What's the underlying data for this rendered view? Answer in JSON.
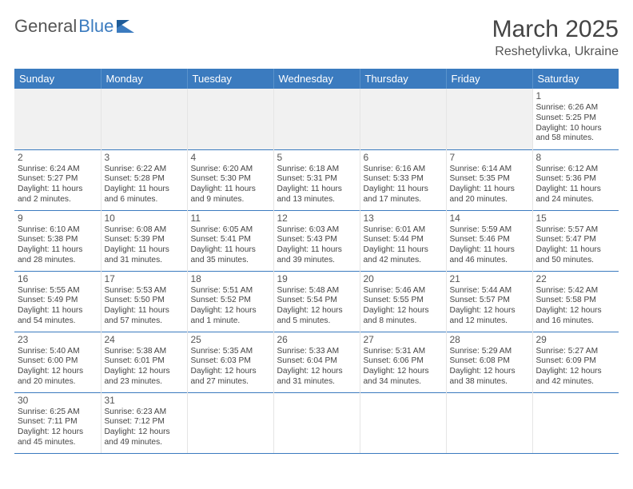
{
  "brand": {
    "name1": "General",
    "name2": "Blue"
  },
  "title": "March 2025",
  "location": "Reshetylivka, Ukraine",
  "colors": {
    "header_bg": "#3b7bbf",
    "header_text": "#ffffff",
    "cell_border": "#3b7bbf",
    "text": "#444444",
    "empty_bg": "#f1f1f1"
  },
  "dow": [
    "Sunday",
    "Monday",
    "Tuesday",
    "Wednesday",
    "Thursday",
    "Friday",
    "Saturday"
  ],
  "weeks": [
    [
      null,
      null,
      null,
      null,
      null,
      null,
      {
        "n": "1",
        "sr": "Sunrise: 6:26 AM",
        "ss": "Sunset: 5:25 PM",
        "d1": "Daylight: 10 hours",
        "d2": "and 58 minutes."
      }
    ],
    [
      {
        "n": "2",
        "sr": "Sunrise: 6:24 AM",
        "ss": "Sunset: 5:27 PM",
        "d1": "Daylight: 11 hours",
        "d2": "and 2 minutes."
      },
      {
        "n": "3",
        "sr": "Sunrise: 6:22 AM",
        "ss": "Sunset: 5:28 PM",
        "d1": "Daylight: 11 hours",
        "d2": "and 6 minutes."
      },
      {
        "n": "4",
        "sr": "Sunrise: 6:20 AM",
        "ss": "Sunset: 5:30 PM",
        "d1": "Daylight: 11 hours",
        "d2": "and 9 minutes."
      },
      {
        "n": "5",
        "sr": "Sunrise: 6:18 AM",
        "ss": "Sunset: 5:31 PM",
        "d1": "Daylight: 11 hours",
        "d2": "and 13 minutes."
      },
      {
        "n": "6",
        "sr": "Sunrise: 6:16 AM",
        "ss": "Sunset: 5:33 PM",
        "d1": "Daylight: 11 hours",
        "d2": "and 17 minutes."
      },
      {
        "n": "7",
        "sr": "Sunrise: 6:14 AM",
        "ss": "Sunset: 5:35 PM",
        "d1": "Daylight: 11 hours",
        "d2": "and 20 minutes."
      },
      {
        "n": "8",
        "sr": "Sunrise: 6:12 AM",
        "ss": "Sunset: 5:36 PM",
        "d1": "Daylight: 11 hours",
        "d2": "and 24 minutes."
      }
    ],
    [
      {
        "n": "9",
        "sr": "Sunrise: 6:10 AM",
        "ss": "Sunset: 5:38 PM",
        "d1": "Daylight: 11 hours",
        "d2": "and 28 minutes."
      },
      {
        "n": "10",
        "sr": "Sunrise: 6:08 AM",
        "ss": "Sunset: 5:39 PM",
        "d1": "Daylight: 11 hours",
        "d2": "and 31 minutes."
      },
      {
        "n": "11",
        "sr": "Sunrise: 6:05 AM",
        "ss": "Sunset: 5:41 PM",
        "d1": "Daylight: 11 hours",
        "d2": "and 35 minutes."
      },
      {
        "n": "12",
        "sr": "Sunrise: 6:03 AM",
        "ss": "Sunset: 5:43 PM",
        "d1": "Daylight: 11 hours",
        "d2": "and 39 minutes."
      },
      {
        "n": "13",
        "sr": "Sunrise: 6:01 AM",
        "ss": "Sunset: 5:44 PM",
        "d1": "Daylight: 11 hours",
        "d2": "and 42 minutes."
      },
      {
        "n": "14",
        "sr": "Sunrise: 5:59 AM",
        "ss": "Sunset: 5:46 PM",
        "d1": "Daylight: 11 hours",
        "d2": "and 46 minutes."
      },
      {
        "n": "15",
        "sr": "Sunrise: 5:57 AM",
        "ss": "Sunset: 5:47 PM",
        "d1": "Daylight: 11 hours",
        "d2": "and 50 minutes."
      }
    ],
    [
      {
        "n": "16",
        "sr": "Sunrise: 5:55 AM",
        "ss": "Sunset: 5:49 PM",
        "d1": "Daylight: 11 hours",
        "d2": "and 54 minutes."
      },
      {
        "n": "17",
        "sr": "Sunrise: 5:53 AM",
        "ss": "Sunset: 5:50 PM",
        "d1": "Daylight: 11 hours",
        "d2": "and 57 minutes."
      },
      {
        "n": "18",
        "sr": "Sunrise: 5:51 AM",
        "ss": "Sunset: 5:52 PM",
        "d1": "Daylight: 12 hours",
        "d2": "and 1 minute."
      },
      {
        "n": "19",
        "sr": "Sunrise: 5:48 AM",
        "ss": "Sunset: 5:54 PM",
        "d1": "Daylight: 12 hours",
        "d2": "and 5 minutes."
      },
      {
        "n": "20",
        "sr": "Sunrise: 5:46 AM",
        "ss": "Sunset: 5:55 PM",
        "d1": "Daylight: 12 hours",
        "d2": "and 8 minutes."
      },
      {
        "n": "21",
        "sr": "Sunrise: 5:44 AM",
        "ss": "Sunset: 5:57 PM",
        "d1": "Daylight: 12 hours",
        "d2": "and 12 minutes."
      },
      {
        "n": "22",
        "sr": "Sunrise: 5:42 AM",
        "ss": "Sunset: 5:58 PM",
        "d1": "Daylight: 12 hours",
        "d2": "and 16 minutes."
      }
    ],
    [
      {
        "n": "23",
        "sr": "Sunrise: 5:40 AM",
        "ss": "Sunset: 6:00 PM",
        "d1": "Daylight: 12 hours",
        "d2": "and 20 minutes."
      },
      {
        "n": "24",
        "sr": "Sunrise: 5:38 AM",
        "ss": "Sunset: 6:01 PM",
        "d1": "Daylight: 12 hours",
        "d2": "and 23 minutes."
      },
      {
        "n": "25",
        "sr": "Sunrise: 5:35 AM",
        "ss": "Sunset: 6:03 PM",
        "d1": "Daylight: 12 hours",
        "d2": "and 27 minutes."
      },
      {
        "n": "26",
        "sr": "Sunrise: 5:33 AM",
        "ss": "Sunset: 6:04 PM",
        "d1": "Daylight: 12 hours",
        "d2": "and 31 minutes."
      },
      {
        "n": "27",
        "sr": "Sunrise: 5:31 AM",
        "ss": "Sunset: 6:06 PM",
        "d1": "Daylight: 12 hours",
        "d2": "and 34 minutes."
      },
      {
        "n": "28",
        "sr": "Sunrise: 5:29 AM",
        "ss": "Sunset: 6:08 PM",
        "d1": "Daylight: 12 hours",
        "d2": "and 38 minutes."
      },
      {
        "n": "29",
        "sr": "Sunrise: 5:27 AM",
        "ss": "Sunset: 6:09 PM",
        "d1": "Daylight: 12 hours",
        "d2": "and 42 minutes."
      }
    ],
    [
      {
        "n": "30",
        "sr": "Sunrise: 6:25 AM",
        "ss": "Sunset: 7:11 PM",
        "d1": "Daylight: 12 hours",
        "d2": "and 45 minutes."
      },
      {
        "n": "31",
        "sr": "Sunrise: 6:23 AM",
        "ss": "Sunset: 7:12 PM",
        "d1": "Daylight: 12 hours",
        "d2": "and 49 minutes."
      },
      null,
      null,
      null,
      null,
      null
    ]
  ]
}
